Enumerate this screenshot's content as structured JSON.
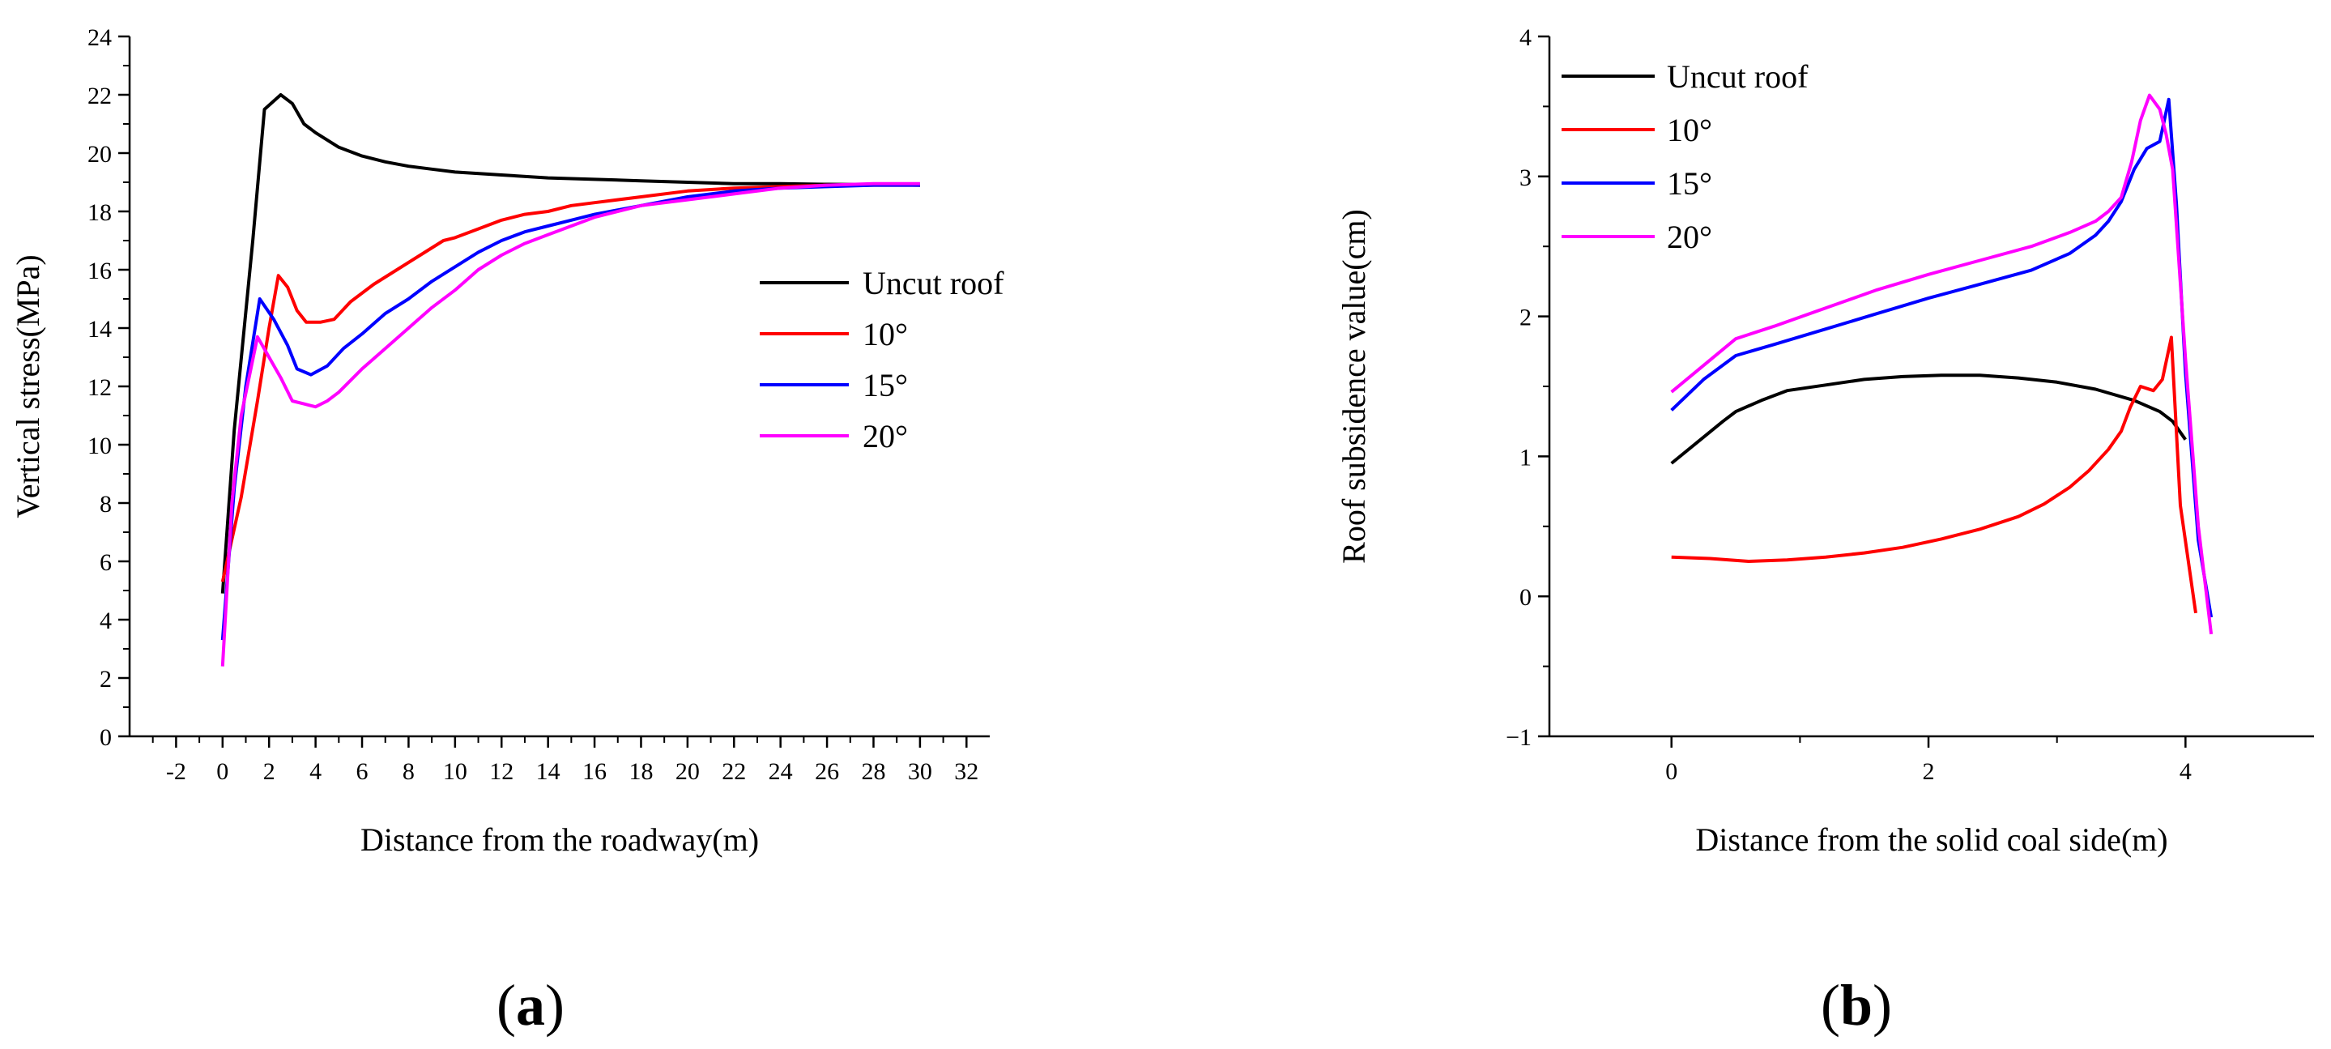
{
  "chart_data": [
    {
      "id": "a",
      "type": "line",
      "panel_label": {
        "open": "(",
        "letter": "a",
        "close": ")"
      },
      "xlabel": "Distance from the roadway(m)",
      "ylabel": "Vertical stress(MPa)",
      "xlim": [
        -4,
        33
      ],
      "ylim": [
        0,
        24
      ],
      "xticks": [
        -2,
        0,
        2,
        4,
        6,
        8,
        10,
        12,
        14,
        16,
        18,
        20,
        22,
        24,
        26,
        28,
        30,
        32
      ],
      "yticks": [
        0,
        2,
        4,
        6,
        8,
        10,
        12,
        14,
        16,
        18,
        20,
        22,
        24
      ],
      "legend_position": "center-right",
      "series": [
        {
          "name": "Uncut roof",
          "color": "#000000",
          "x": [
            0,
            0.5,
            1.3,
            1.8,
            2.5,
            3.0,
            3.5,
            4.0,
            5.0,
            6.0,
            7.0,
            8.0,
            9.0,
            10.0,
            12.0,
            14.0,
            16.0,
            18.0,
            20.0,
            22.0,
            24.0,
            26.0,
            28.0,
            30.0
          ],
          "y": [
            4.9,
            10.5,
            17.0,
            21.5,
            22.0,
            21.7,
            21.0,
            20.7,
            20.2,
            19.9,
            19.7,
            19.55,
            19.45,
            19.35,
            19.25,
            19.15,
            19.1,
            19.05,
            19.0,
            18.95,
            18.95,
            18.93,
            18.92,
            18.9
          ]
        },
        {
          "name": "10°",
          "color": "#ff0000",
          "x": [
            0,
            0.8,
            1.5,
            2.0,
            2.4,
            2.8,
            3.2,
            3.6,
            4.2,
            4.8,
            5.5,
            6.5,
            7.5,
            8.5,
            9.5,
            10.0,
            11.0,
            12.0,
            13.0,
            14.0,
            15.0,
            16.0,
            18.0,
            20.0,
            22.0,
            24.0,
            26.0,
            28.0,
            30.0
          ],
          "y": [
            5.3,
            8.2,
            11.5,
            14.0,
            15.8,
            15.4,
            14.6,
            14.2,
            14.2,
            14.3,
            14.9,
            15.5,
            16.0,
            16.5,
            17.0,
            17.1,
            17.4,
            17.7,
            17.9,
            18.0,
            18.2,
            18.3,
            18.5,
            18.7,
            18.8,
            18.85,
            18.9,
            18.9,
            18.9
          ]
        },
        {
          "name": "15°",
          "color": "#0000ff",
          "x": [
            0,
            0.5,
            1.0,
            1.6,
            2.2,
            2.8,
            3.2,
            3.8,
            4.5,
            5.2,
            6.0,
            7.0,
            8.0,
            9.0,
            10.0,
            11.0,
            12.0,
            13.0,
            14.0,
            15.0,
            16.0,
            18.0,
            20.0,
            22.0,
            24.0,
            26.0,
            28.0,
            30.0
          ],
          "y": [
            3.3,
            8.5,
            12.0,
            15.0,
            14.3,
            13.4,
            12.6,
            12.4,
            12.7,
            13.3,
            13.8,
            14.5,
            15.0,
            15.6,
            16.1,
            16.6,
            17.0,
            17.3,
            17.5,
            17.7,
            17.9,
            18.2,
            18.5,
            18.7,
            18.8,
            18.85,
            18.9,
            18.9
          ]
        },
        {
          "name": "20°",
          "color": "#ff00ff",
          "x": [
            0,
            0.4,
            0.8,
            1.5,
            2.0,
            2.5,
            3.0,
            3.5,
            4.0,
            4.5,
            5.0,
            6.0,
            7.0,
            8.0,
            9.0,
            10.0,
            11.0,
            12.0,
            13.0,
            14.0,
            16.0,
            18.0,
            20.0,
            22.0,
            24.0,
            26.0,
            28.0,
            30.0
          ],
          "y": [
            2.4,
            8.0,
            11.0,
            13.7,
            13.0,
            12.3,
            11.5,
            11.4,
            11.3,
            11.5,
            11.8,
            12.6,
            13.3,
            14.0,
            14.7,
            15.3,
            16.0,
            16.5,
            16.9,
            17.2,
            17.8,
            18.2,
            18.4,
            18.6,
            18.8,
            18.9,
            18.95,
            18.95
          ]
        }
      ]
    },
    {
      "id": "b",
      "type": "line",
      "panel_label": {
        "open": "(",
        "letter": "b",
        "close": ")"
      },
      "xlabel": "Distance from the solid coal side(m)",
      "ylabel": "Roof subsidence value(cm)",
      "xlim": [
        -0.95,
        5.0
      ],
      "ylim": [
        -1,
        4
      ],
      "xticks": [
        0,
        2,
        4
      ],
      "yticks_major": [
        -1,
        0,
        1,
        2,
        3,
        4
      ],
      "yticks_labels": [
        "−1",
        "0",
        "1",
        "2",
        "3",
        "4"
      ],
      "legend_position": "top-left",
      "series": [
        {
          "name": "Uncut roof",
          "color": "#000000",
          "x": [
            0,
            0.2,
            0.4,
            0.5,
            0.7,
            0.9,
            1.2,
            1.5,
            1.8,
            2.1,
            2.4,
            2.7,
            3.0,
            3.3,
            3.6,
            3.8,
            3.9,
            4.0
          ],
          "y": [
            0.95,
            1.1,
            1.25,
            1.32,
            1.4,
            1.47,
            1.51,
            1.55,
            1.57,
            1.58,
            1.58,
            1.56,
            1.53,
            1.48,
            1.4,
            1.32,
            1.25,
            1.12
          ]
        },
        {
          "name": "10°",
          "color": "#ff0000",
          "x": [
            0,
            0.3,
            0.6,
            0.9,
            1.2,
            1.5,
            1.8,
            2.1,
            2.4,
            2.7,
            2.9,
            3.1,
            3.25,
            3.4,
            3.5,
            3.57,
            3.65,
            3.75,
            3.82,
            3.89,
            3.96,
            4.03,
            4.08
          ],
          "y": [
            0.28,
            0.27,
            0.25,
            0.26,
            0.28,
            0.31,
            0.35,
            0.41,
            0.48,
            0.57,
            0.66,
            0.78,
            0.9,
            1.05,
            1.18,
            1.35,
            1.5,
            1.47,
            1.55,
            1.85,
            0.65,
            0.2,
            -0.12
          ]
        },
        {
          "name": "15°",
          "color": "#0000ff",
          "x": [
            0,
            0.25,
            0.5,
            0.8,
            1.2,
            1.6,
            2.0,
            2.4,
            2.8,
            3.1,
            3.3,
            3.4,
            3.5,
            3.6,
            3.7,
            3.8,
            3.87,
            3.93,
            4.0,
            4.1,
            4.2
          ],
          "y": [
            1.33,
            1.55,
            1.72,
            1.8,
            1.91,
            2.02,
            2.13,
            2.23,
            2.33,
            2.45,
            2.58,
            2.68,
            2.82,
            3.05,
            3.2,
            3.25,
            3.55,
            2.8,
            1.6,
            0.4,
            -0.15
          ]
        },
        {
          "name": "20°",
          "color": "#ff00ff",
          "x": [
            0,
            0.25,
            0.5,
            0.8,
            1.2,
            1.6,
            2.0,
            2.4,
            2.8,
            3.1,
            3.3,
            3.4,
            3.5,
            3.58,
            3.65,
            3.72,
            3.8,
            3.85,
            3.9,
            4.0,
            4.1,
            4.2
          ],
          "y": [
            1.46,
            1.65,
            1.84,
            1.93,
            2.06,
            2.19,
            2.3,
            2.4,
            2.5,
            2.6,
            2.68,
            2.75,
            2.85,
            3.1,
            3.4,
            3.58,
            3.48,
            3.3,
            3.05,
            1.7,
            0.5,
            -0.27
          ]
        }
      ]
    }
  ]
}
